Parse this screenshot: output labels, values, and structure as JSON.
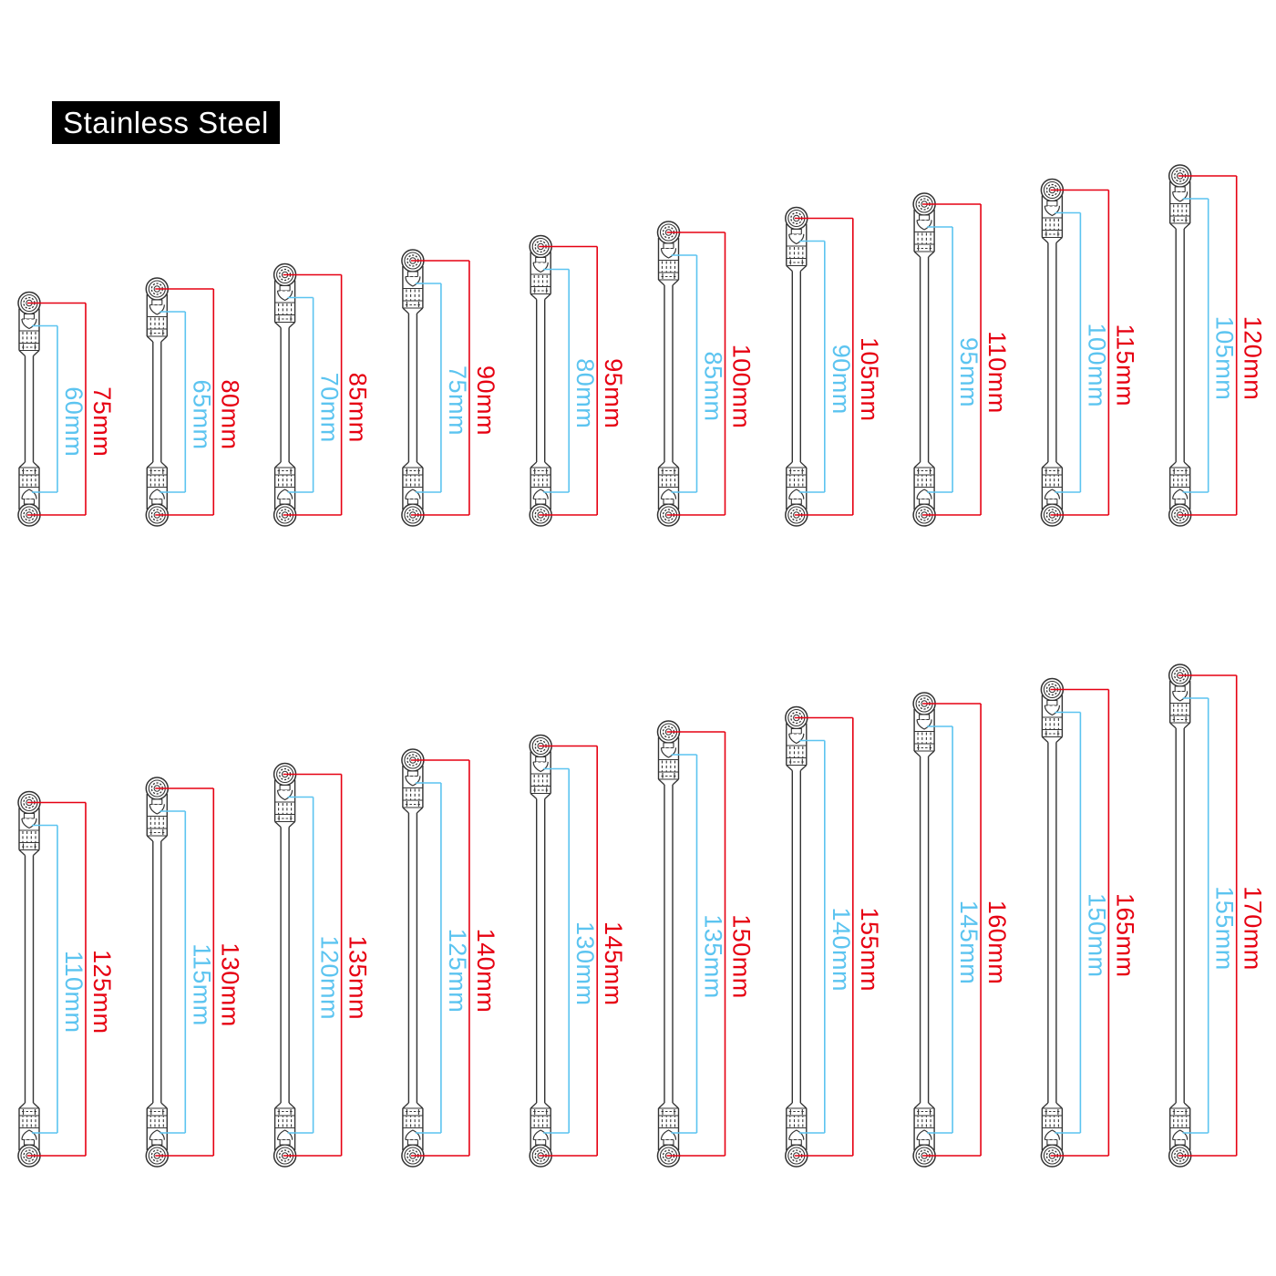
{
  "badge": {
    "label": "Stainless Steel"
  },
  "colors": {
    "background": "#ffffff",
    "badge_bg": "#000000",
    "badge_fg": "#ffffff",
    "outline": "#333333",
    "overall_dim": "#e60012",
    "inner_dim": "#5cc4f0"
  },
  "diagram": {
    "description": "Two rows of stainless-steel linkage rods with ball-joint rod ends; red dimension = overall length (ball center to ball center), blue dimension = inner rod length",
    "unit": "mm",
    "rows": [
      {
        "rods": [
          {
            "overall_mm": 75,
            "inner_mm": 60,
            "overall_label": "75mm",
            "inner_label": "60mm"
          },
          {
            "overall_mm": 80,
            "inner_mm": 65,
            "overall_label": "80mm",
            "inner_label": "65mm"
          },
          {
            "overall_mm": 85,
            "inner_mm": 70,
            "overall_label": "85mm",
            "inner_label": "70mm"
          },
          {
            "overall_mm": 90,
            "inner_mm": 75,
            "overall_label": "90mm",
            "inner_label": "75mm"
          },
          {
            "overall_mm": 95,
            "inner_mm": 80,
            "overall_label": "95mm",
            "inner_label": "80mm"
          },
          {
            "overall_mm": 100,
            "inner_mm": 85,
            "overall_label": "100mm",
            "inner_label": "85mm"
          },
          {
            "overall_mm": 105,
            "inner_mm": 90,
            "overall_label": "105mm",
            "inner_label": "90mm"
          },
          {
            "overall_mm": 110,
            "inner_mm": 95,
            "overall_label": "110mm",
            "inner_label": "95mm"
          },
          {
            "overall_mm": 115,
            "inner_mm": 100,
            "overall_label": "115mm",
            "inner_label": "100mm"
          },
          {
            "overall_mm": 120,
            "inner_mm": 105,
            "overall_label": "120mm",
            "inner_label": "105mm"
          }
        ]
      },
      {
        "rods": [
          {
            "overall_mm": 125,
            "inner_mm": 110,
            "overall_label": "125mm",
            "inner_label": "110mm"
          },
          {
            "overall_mm": 130,
            "inner_mm": 115,
            "overall_label": "130mm",
            "inner_label": "115mm"
          },
          {
            "overall_mm": 135,
            "inner_mm": 120,
            "overall_label": "135mm",
            "inner_label": "120mm"
          },
          {
            "overall_mm": 140,
            "inner_mm": 125,
            "overall_label": "140mm",
            "inner_label": "125mm"
          },
          {
            "overall_mm": 145,
            "inner_mm": 130,
            "overall_label": "145mm",
            "inner_label": "130mm"
          },
          {
            "overall_mm": 150,
            "inner_mm": 135,
            "overall_label": "150mm",
            "inner_label": "135mm"
          },
          {
            "overall_mm": 155,
            "inner_mm": 140,
            "overall_label": "155mm",
            "inner_label": "140mm"
          },
          {
            "overall_mm": 160,
            "inner_mm": 145,
            "overall_label": "160mm",
            "inner_label": "145mm"
          },
          {
            "overall_mm": 165,
            "inner_mm": 150,
            "overall_label": "165mm",
            "inner_label": "150mm"
          },
          {
            "overall_mm": 170,
            "inner_mm": 155,
            "overall_label": "170mm",
            "inner_label": "155mm"
          }
        ]
      }
    ]
  }
}
